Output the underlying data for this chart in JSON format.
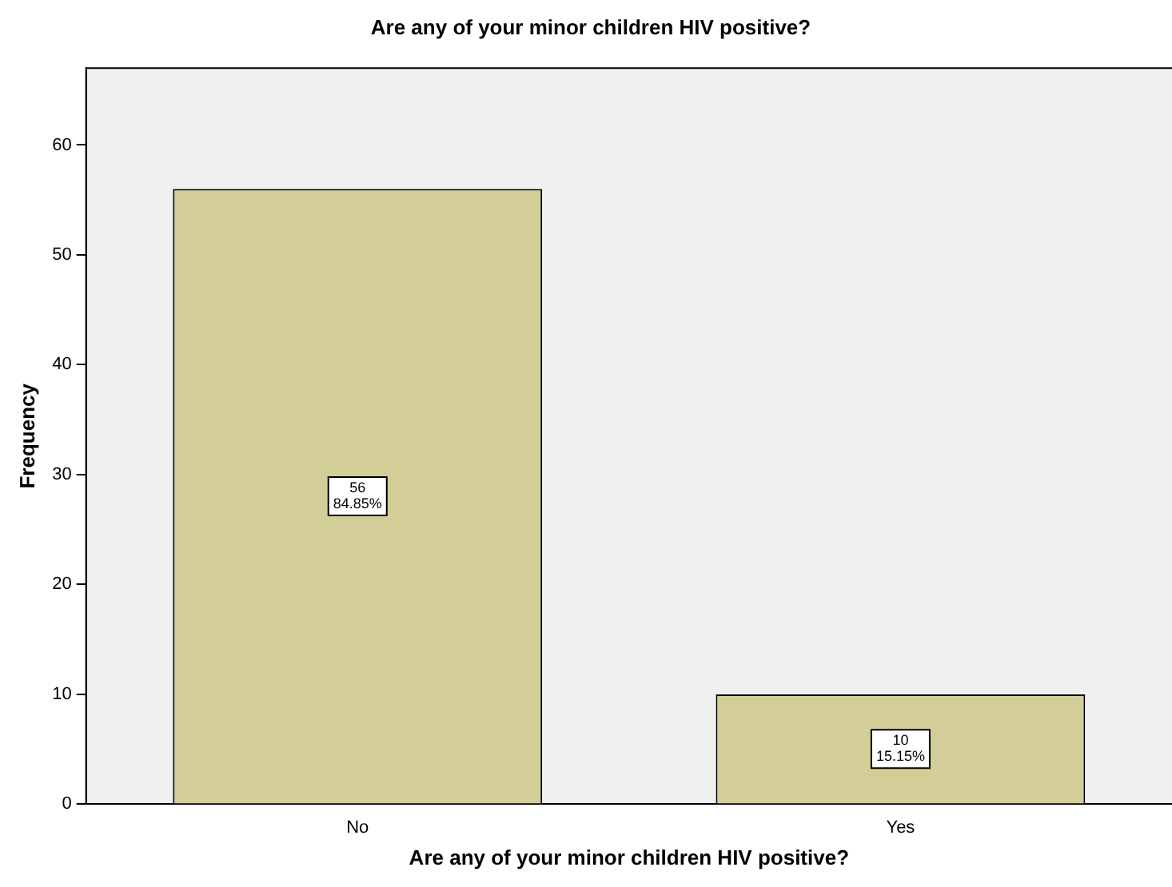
{
  "chart_data": {
    "type": "bar",
    "title": "Are any of your minor children HIV positive?",
    "xlabel": "Are any of your minor children HIV positive?",
    "ylabel": "Frequency",
    "categories": [
      "No",
      "Yes"
    ],
    "values": [
      56,
      10
    ],
    "value_labels": [
      "56\n84.85%",
      "10\n15.15%"
    ],
    "color": "#d3ce97",
    "ylim": [
      0,
      67
    ],
    "yticks": [
      0,
      10,
      20,
      30,
      40,
      50,
      60
    ],
    "grid": false,
    "legend": false
  }
}
